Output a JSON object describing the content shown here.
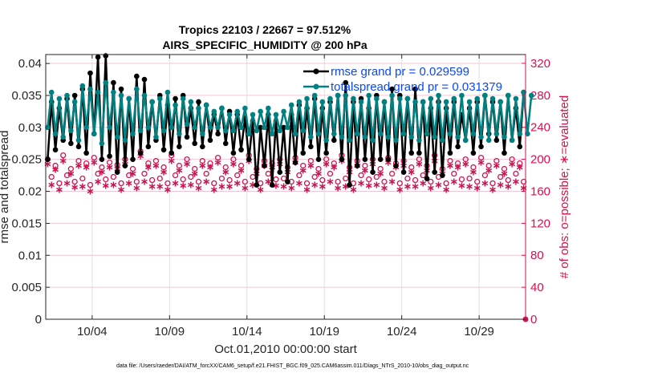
{
  "chart_data": {
    "type": "line",
    "title": [
      "Tropics 22103 / 22667 = 97.512%",
      "AIRS_SPECIFIC_HUMIDITY @ 200 hPa"
    ],
    "xlabel": "Oct.01,2010 00:00:00 start",
    "ylabel": "rmse and totalspread",
    "ylabel_right": "# of obs: o=possible; ∗=evaluated",
    "footer": "data file: /Users/raeder/DAI/ATM_forcXX/CAM6_setup/f.e21.FHIST_BGC.f09_025.CAM6assim.011/Diags_NTrS_2010-10/obs_diag_output.nc",
    "xlim": [
      0,
      31
    ],
    "ylim": [
      0,
      0.0414
    ],
    "ylim_right": [
      0,
      331
    ],
    "x_ticks": [
      {
        "day": 3,
        "label": "10/04"
      },
      {
        "day": 8,
        "label": "10/09"
      },
      {
        "day": 13,
        "label": "10/14"
      },
      {
        "day": 18,
        "label": "10/19"
      },
      {
        "day": 23,
        "label": "10/24"
      },
      {
        "day": 28,
        "label": "10/29"
      }
    ],
    "y_ticks": [
      "0",
      "0.005",
      "0.01",
      "0.015",
      "0.02",
      "0.025",
      "0.03",
      "0.035",
      "0.04"
    ],
    "y_tick_values": [
      0,
      0.005,
      0.01,
      0.015,
      0.02,
      0.025,
      0.03,
      0.035,
      0.04
    ],
    "y_right_ticks": [
      "0",
      "40",
      "80",
      "120",
      "160",
      "200",
      "240",
      "280",
      "320"
    ],
    "y_right_tick_values": [
      0,
      40,
      80,
      120,
      160,
      200,
      240,
      280,
      320
    ],
    "x_step_days": 0.25,
    "x_start_day": 0.125,
    "legend_position": "top-right",
    "series": [
      {
        "name": "rmse grand pr = 0.029599",
        "color": "#000000",
        "axis": "left",
        "values": [
          0.025,
          0.034,
          0.0265,
          0.033,
          0.028,
          0.0345,
          0.0275,
          0.035,
          0.027,
          0.036,
          0.026,
          0.0385,
          0.029,
          0.041,
          0.025,
          0.0412,
          0.0255,
          0.037,
          0.023,
          0.036,
          0.024,
          0.0345,
          0.025,
          0.038,
          0.026,
          0.0375,
          0.027,
          0.034,
          0.028,
          0.035,
          0.0265,
          0.0335,
          0.026,
          0.0345,
          0.027,
          0.035,
          0.0285,
          0.033,
          0.0275,
          0.034,
          0.027,
          0.0335,
          0.028,
          0.032,
          0.029,
          0.033,
          0.0275,
          0.0325,
          0.026,
          0.032,
          0.0265,
          0.0315,
          0.025,
          0.031,
          0.021,
          0.03,
          0.024,
          0.032,
          0.021,
          0.031,
          0.023,
          0.03,
          0.0215,
          0.032,
          0.0245,
          0.0335,
          0.026,
          0.033,
          0.027,
          0.0345,
          0.025,
          0.033,
          0.026,
          0.034,
          0.028,
          0.035,
          0.025,
          0.037,
          0.021,
          0.034,
          0.024,
          0.0345,
          0.025,
          0.033,
          0.023,
          0.035,
          0.025,
          0.034,
          0.025,
          0.036,
          0.024,
          0.035,
          0.023,
          0.0345,
          0.026,
          0.036,
          0.026,
          0.034,
          0.022,
          0.033,
          0.023,
          0.034,
          0.0225,
          0.033,
          0.026,
          0.034,
          0.027,
          0.032,
          0.028,
          0.033,
          0.026,
          0.034,
          0.027,
          0.035,
          0.029,
          0.034,
          0.028,
          0.034,
          0.026,
          0.035,
          0.028,
          0.033,
          0.027,
          0.0355
        ]
      },
      {
        "name": "totalspread grand pr = 0.031379",
        "color": "#008080",
        "axis": "left",
        "values": [
          0.03,
          0.0355,
          0.029,
          0.0345,
          0.0285,
          0.035,
          0.0295,
          0.034,
          0.028,
          0.0365,
          0.03,
          0.036,
          0.029,
          0.0355,
          0.0275,
          0.037,
          0.03,
          0.0355,
          0.0285,
          0.035,
          0.028,
          0.0345,
          0.029,
          0.036,
          0.0295,
          0.035,
          0.03,
          0.034,
          0.0285,
          0.0345,
          0.0295,
          0.0355,
          0.03,
          0.0335,
          0.029,
          0.0345,
          0.0305,
          0.034,
          0.03,
          0.033,
          0.029,
          0.0335,
          0.03,
          0.0325,
          0.03,
          0.033,
          0.0295,
          0.032,
          0.0295,
          0.0325,
          0.03,
          0.033,
          0.029,
          0.032,
          0.0295,
          0.0325,
          0.03,
          0.033,
          0.029,
          0.032,
          0.0295,
          0.0325,
          0.03,
          0.0335,
          0.029,
          0.034,
          0.0295,
          0.0345,
          0.0285,
          0.035,
          0.029,
          0.034,
          0.028,
          0.0345,
          0.029,
          0.035,
          0.0285,
          0.035,
          0.028,
          0.0345,
          0.029,
          0.034,
          0.0285,
          0.035,
          0.028,
          0.0345,
          0.029,
          0.034,
          0.0285,
          0.035,
          0.028,
          0.0345,
          0.029,
          0.0345,
          0.0285,
          0.034,
          0.028,
          0.034,
          0.029,
          0.0345,
          0.0285,
          0.035,
          0.028,
          0.034,
          0.029,
          0.0345,
          0.0285,
          0.035,
          0.028,
          0.034,
          0.029,
          0.0345,
          0.0285,
          0.035,
          0.028,
          0.0345,
          0.029,
          0.034,
          0.0285,
          0.035,
          0.028,
          0.0345,
          0.029,
          0.0355,
          0.029,
          0.035
        ]
      },
      {
        "name": "obs possible",
        "color": "#d6114e",
        "axis": "right",
        "marker": "circle",
        "values": [
          200,
          178,
          192,
          170,
          205,
          180,
          188,
          172,
          198,
          176,
          195,
          168,
          202,
          182,
          190,
          175,
          196,
          178,
          193,
          170,
          200,
          180,
          188,
          172,
          210,
          182,
          195,
          174,
          198,
          176,
          190,
          170,
          205,
          180,
          192,
          175,
          200,
          178,
          188,
          172,
          198,
          182,
          195,
          170,
          202,
          176,
          190,
          174,
          200,
          180,
          192,
          172,
          205,
          178,
          188,
          170,
          198,
          182,
          195,
          175,
          200,
          176,
          190,
          172,
          202,
          180,
          192,
          170,
          198,
          178,
          188,
          174,
          200,
          182,
          195,
          172,
          205,
          176,
          190,
          170,
          198,
          180,
          192,
          175,
          200,
          178,
          188,
          172,
          202,
          182,
          195,
          170,
          198,
          176,
          190,
          174,
          200,
          180,
          192,
          172,
          205,
          178,
          188,
          170,
          198,
          182,
          195,
          175,
          200,
          176,
          190,
          172,
          202,
          180,
          192,
          170,
          198,
          178,
          188,
          174,
          200,
          182,
          195,
          172
        ]
      },
      {
        "name": "obs evaluated",
        "color": "#d6114e",
        "axis": "right",
        "marker": "star",
        "values": [
          194,
          168,
          187,
          162,
          198,
          170,
          182,
          165,
          192,
          166,
          190,
          160,
          196,
          172,
          184,
          167,
          190,
          168,
          188,
          162,
          194,
          170,
          182,
          164,
          204,
          172,
          190,
          166,
          192,
          166,
          184,
          162,
          198,
          170,
          186,
          167,
          194,
          168,
          182,
          164,
          192,
          172,
          190,
          162,
          196,
          166,
          184,
          166,
          194,
          170,
          186,
          164,
          198,
          168,
          182,
          162,
          192,
          172,
          190,
          167,
          194,
          166,
          184,
          164,
          196,
          170,
          186,
          162,
          192,
          168,
          182,
          166,
          194,
          172,
          190,
          164,
          198,
          166,
          184,
          162,
          192,
          170,
          186,
          167,
          194,
          168,
          182,
          164,
          196,
          172,
          190,
          162,
          192,
          166,
          184,
          166,
          194,
          170,
          186,
          164,
          198,
          168,
          182,
          162,
          192,
          172,
          190,
          167,
          194,
          166,
          184,
          164,
          196,
          170,
          186,
          162,
          192,
          168,
          182,
          166,
          194,
          172,
          190,
          164
        ]
      }
    ]
  }
}
